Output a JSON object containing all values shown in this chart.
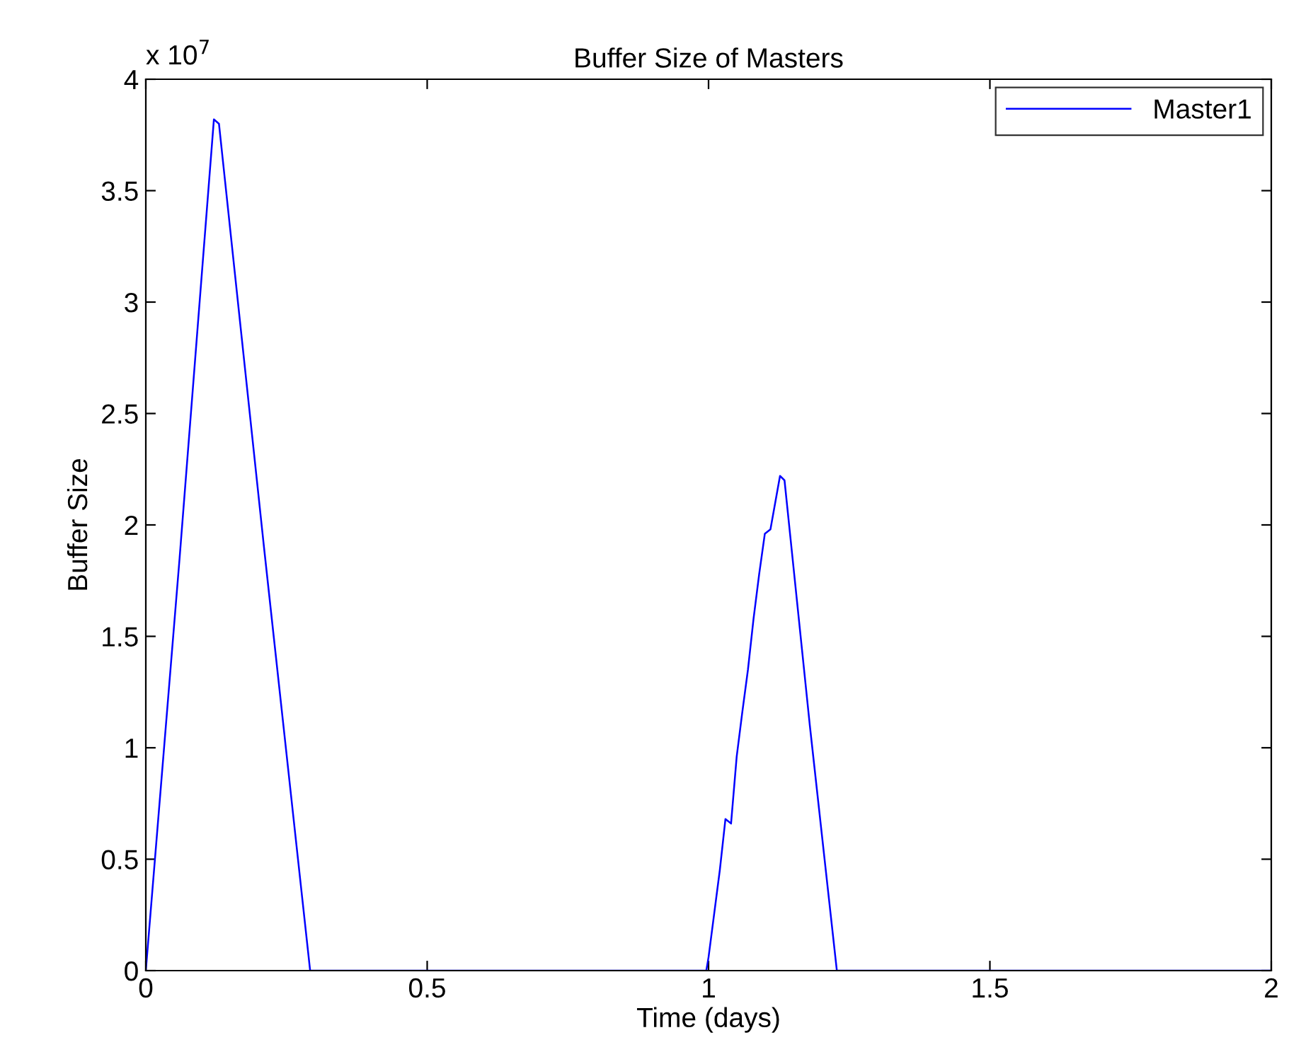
{
  "chart_data": {
    "type": "line",
    "title": "Buffer Size of Masters",
    "xlabel": "Time (days)",
    "ylabel": "Buffer Size",
    "annotations": [
      "x 10$^{7}$"
    ],
    "series": [
      {
        "name": "Master1",
        "color": "#0000ff",
        "x": [
          0,
          0.06,
          0.121,
          0.13,
          0.21,
          0.292,
          0.5,
          0.996,
          1.0,
          1.02,
          1.03,
          1.04,
          1.05,
          1.06,
          1.07,
          1.08,
          1.09,
          1.1,
          1.11,
          1.127,
          1.135,
          1.18,
          1.228,
          1.5,
          2.0
        ],
        "values": [
          0,
          1.85,
          3.82,
          3.8,
          1.9,
          0,
          0,
          0,
          0.06,
          0.45,
          0.68,
          0.66,
          0.96,
          1.16,
          1.35,
          1.58,
          1.78,
          1.96,
          1.98,
          2.22,
          2.2,
          1.1,
          0,
          0,
          0
        ]
      }
    ],
    "xlim": [
      0,
      2
    ],
    "xticks": [
      0,
      0.5,
      1,
      1.5,
      2
    ],
    "ylim": [
      0,
      4
    ],
    "yticks": [
      0,
      0.5,
      1,
      1.5,
      2,
      2.5,
      3,
      3.5,
      4
    ],
    "legend": "top right",
    "grid": false
  }
}
